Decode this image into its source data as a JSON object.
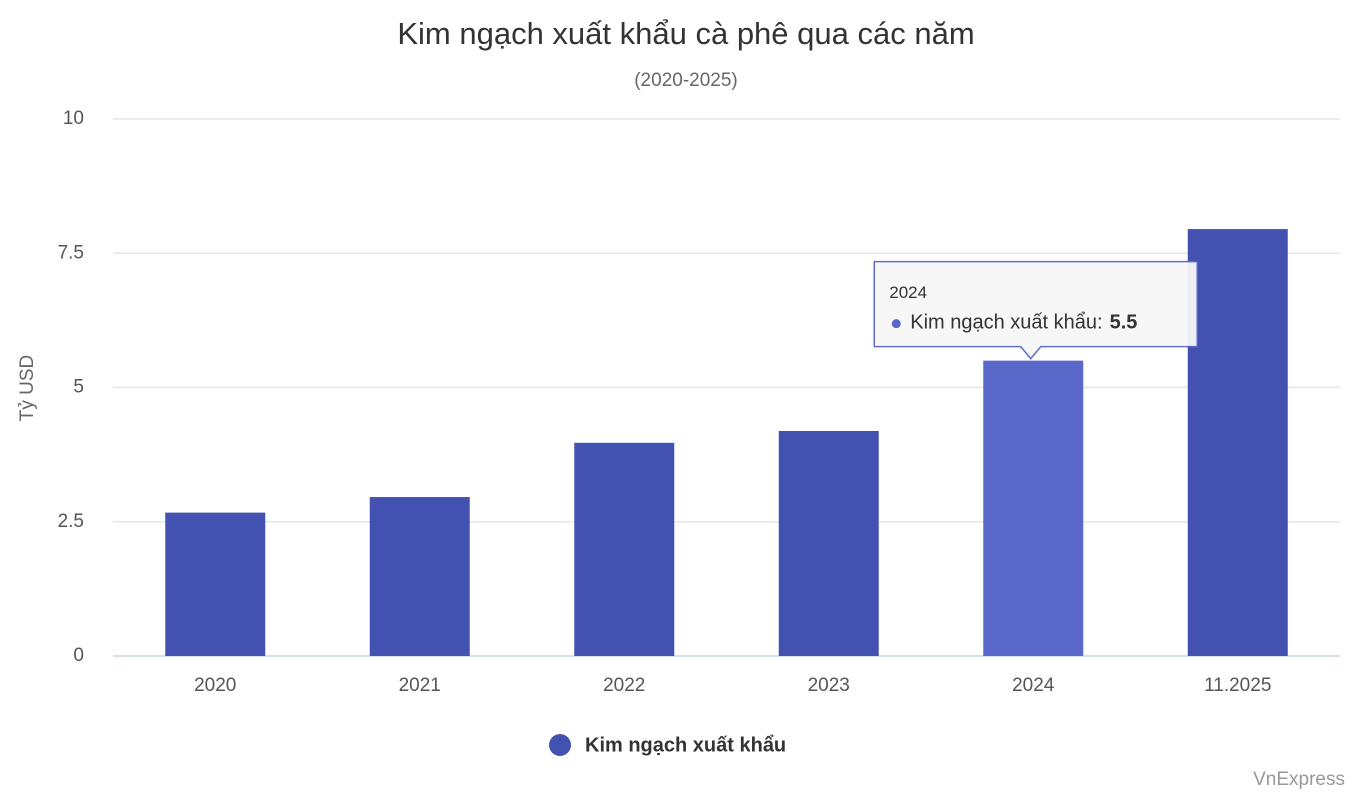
{
  "chart_data": {
    "type": "bar",
    "title": "Kim ngạch xuất khẩu cà phê qua các năm",
    "subtitle": "(2020-2025)",
    "y_label": "Tỷ USD",
    "categories": [
      "2020",
      "2021",
      "2022",
      "2023",
      "2024",
      "11.2025"
    ],
    "series": [
      {
        "name": "Kim ngạch xuất khẩu",
        "color": "#4352b0",
        "highlight_color": "#5a69c9",
        "values": [
          2.67,
          2.96,
          3.97,
          4.19,
          5.5,
          7.95
        ]
      }
    ],
    "ylim": [
      0,
      10
    ],
    "yticks": [
      0,
      2.5,
      5,
      7.5,
      10
    ],
    "grid": true,
    "tooltip": {
      "title": "2024",
      "label": "Kim ngạch xuất khẩu:",
      "value": 5.5
    },
    "credits": "VnExpress"
  }
}
